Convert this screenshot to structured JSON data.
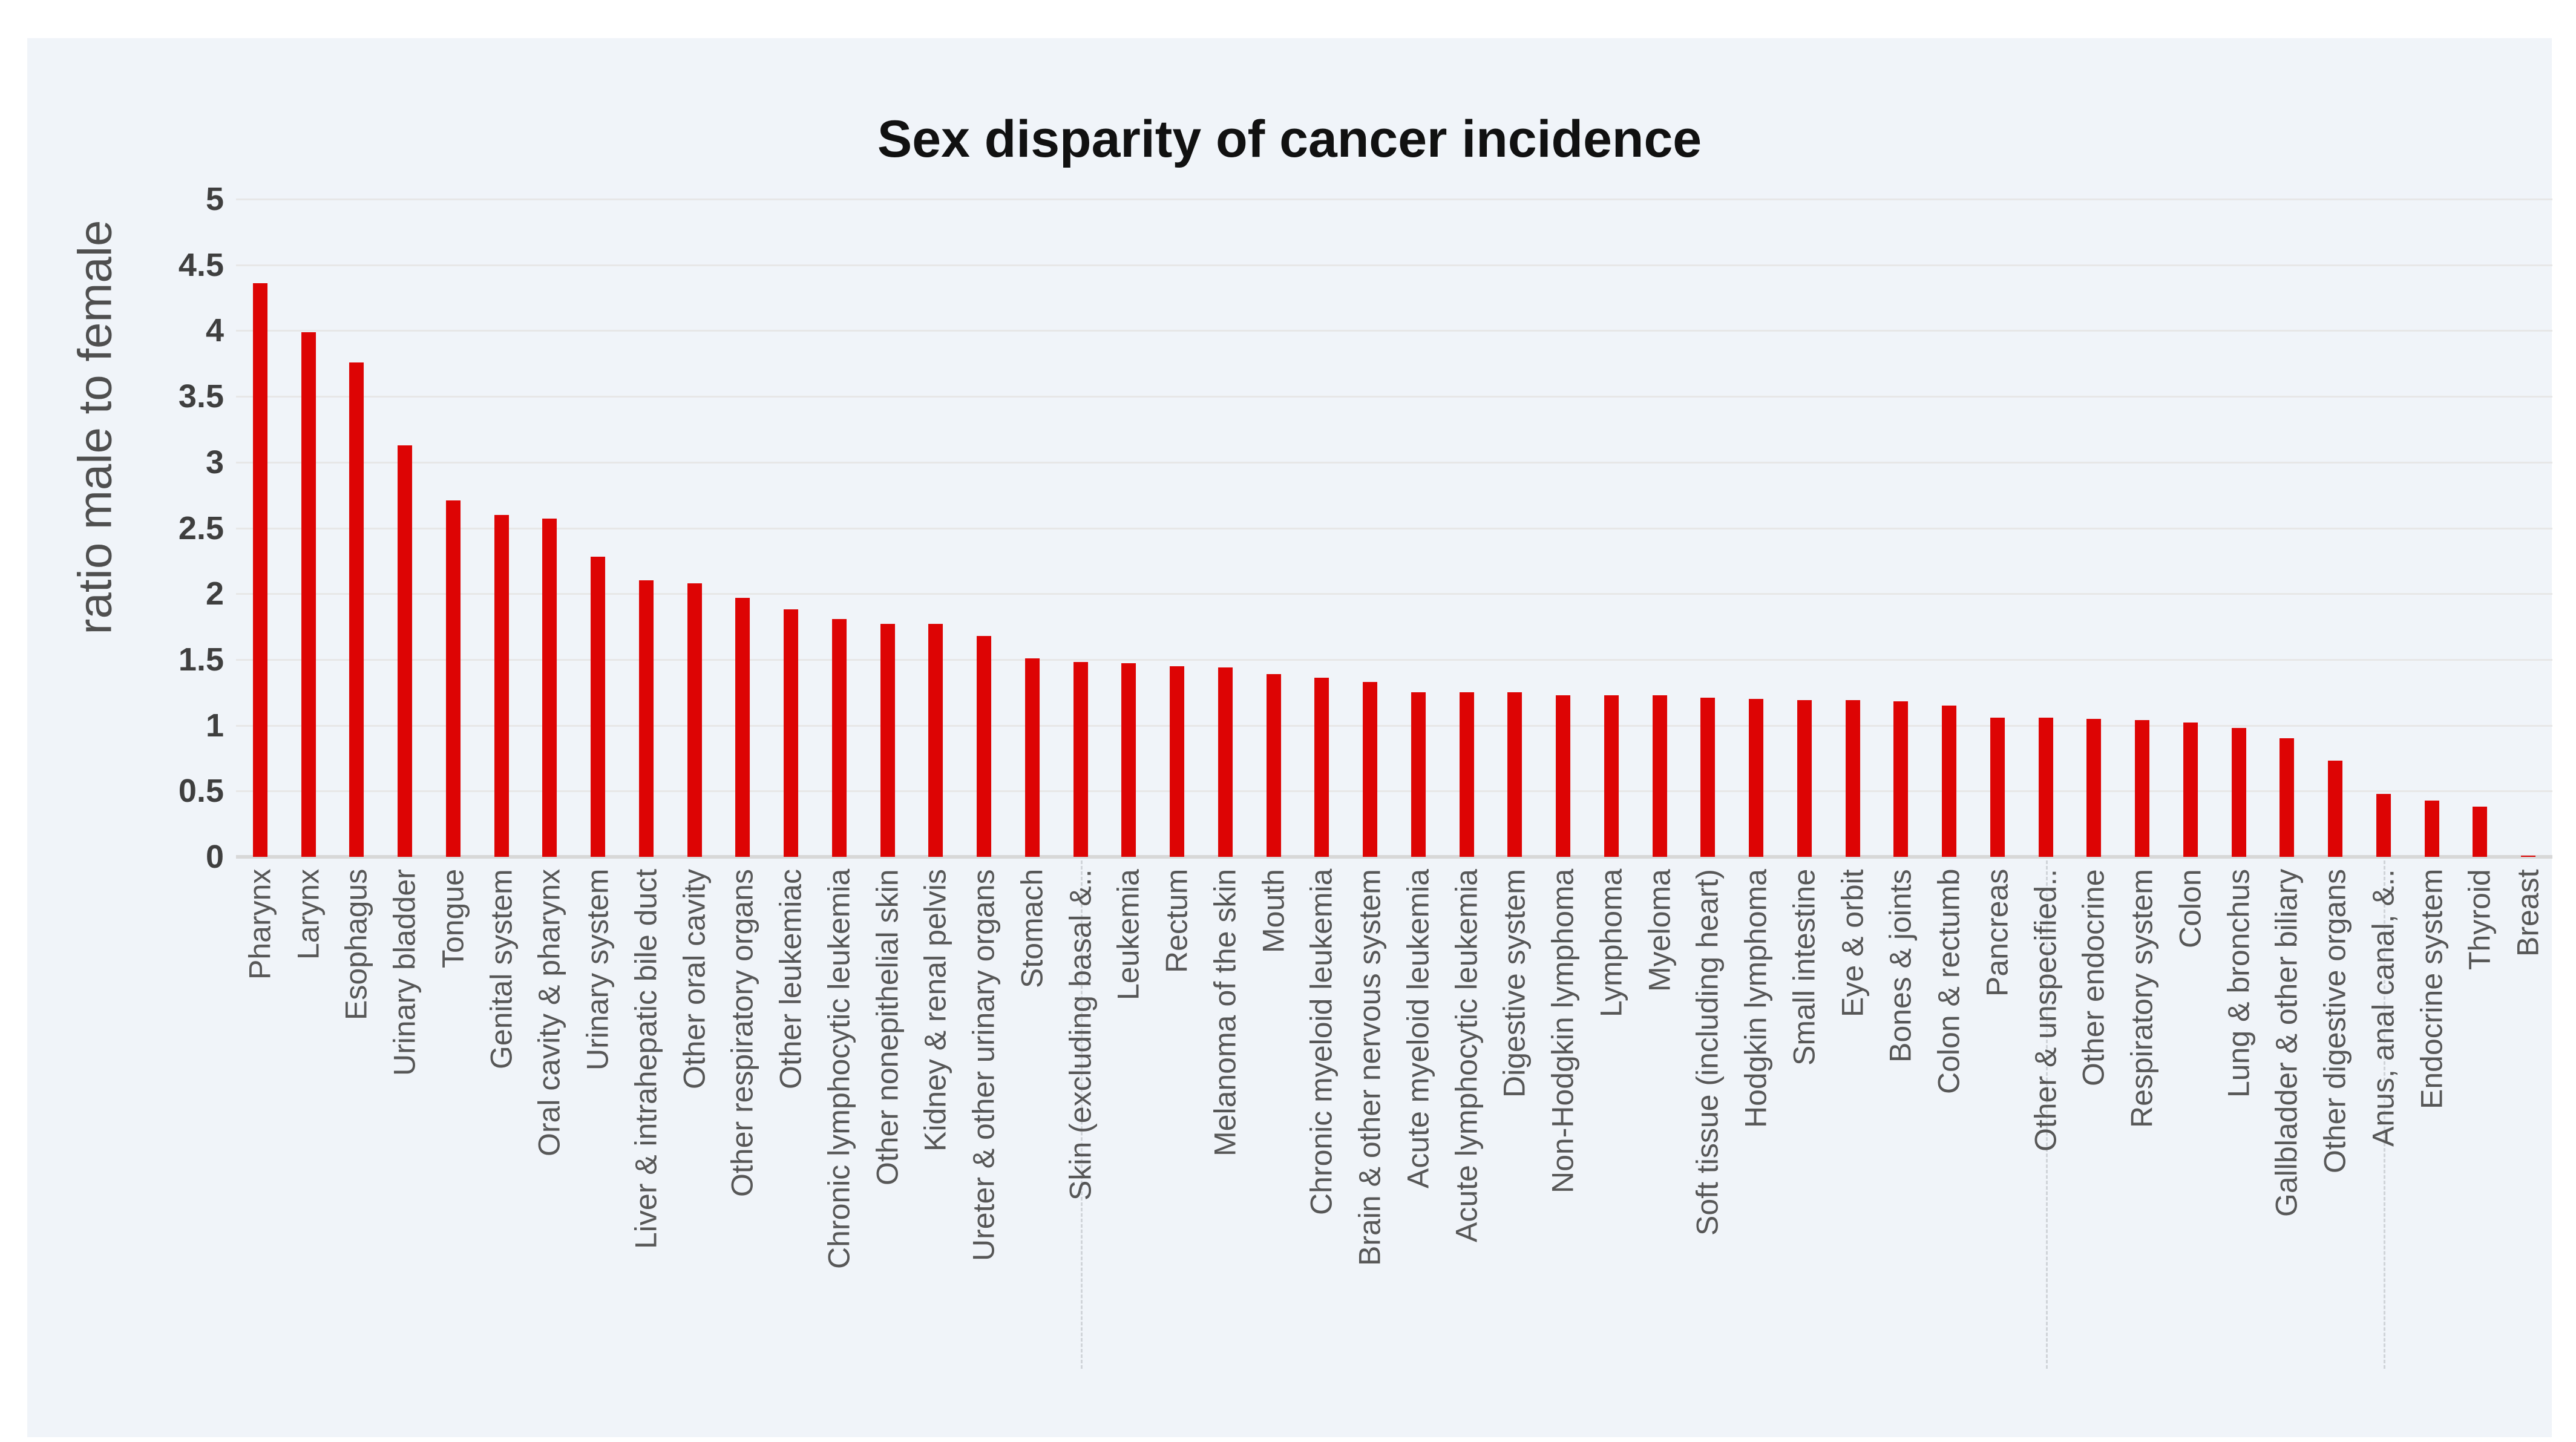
{
  "window": {
    "background": "#ffffff",
    "panel_background": "#f0f4f9"
  },
  "chart_data": {
    "type": "bar",
    "title": "Sex disparity of cancer incidence",
    "xlabel": "",
    "ylabel": "ratio male to female",
    "ylim": [
      0,
      5
    ],
    "ytick_step": 0.5,
    "ytick_labels": [
      "0",
      "0.5",
      "1",
      "1.5",
      "2",
      "2.5",
      "3",
      "3.5",
      "4",
      "4.5",
      "5"
    ],
    "grid": true,
    "legend_position": "none",
    "bar_color": "#dd0404",
    "categories": [
      "Pharynx",
      "Larynx",
      "Esophagus",
      "Urinary bladder",
      "Tongue",
      "Genital system",
      "Oral cavity & pharynx",
      "Urinary system",
      "Liver & intrahepatic bile duct",
      "Other oral cavity",
      "Other respiratory organs",
      "Other leukemiac",
      "Chronic lymphocytic leukemia",
      "Other nonepithelial skin",
      "Kidney & renal pelvis",
      "Ureter & other urinary organs",
      "Stomach",
      "Skin (excluding basal &..",
      "Leukemia",
      "Rectum",
      "Melanoma of the skin",
      "Mouth",
      "Chronic myeloid leukemia",
      "Brain & other nervous system",
      "Acute myeloid leukemia",
      "Acute lymphocytic leukemia",
      "Digestive system",
      "Non-Hodgkin lymphoma",
      "Lymphoma",
      "Myeloma",
      "Soft tissue (including heart)",
      "Hodgkin lymphoma",
      "Small intestine",
      "Eye & orbit",
      "Bones & joints",
      "Colon & rectumb",
      "Pancreas",
      "Other & unspecified..",
      "Other endocrine",
      "Respiratory system",
      "Colon",
      "Lung & bronchus",
      "Gallbladder & other biliary",
      "Other digestive organs",
      "Anus, anal canal, &..",
      "Endocrine system",
      "Thyroid",
      "Breast"
    ],
    "values": [
      4.36,
      3.99,
      3.76,
      3.13,
      2.71,
      2.6,
      2.57,
      2.28,
      2.1,
      2.08,
      1.97,
      1.88,
      1.81,
      1.77,
      1.77,
      1.68,
      1.51,
      1.48,
      1.47,
      1.45,
      1.44,
      1.39,
      1.36,
      1.33,
      1.25,
      1.25,
      1.25,
      1.23,
      1.23,
      1.23,
      1.21,
      1.2,
      1.19,
      1.19,
      1.18,
      1.15,
      1.06,
      1.06,
      1.05,
      1.04,
      1.02,
      0.98,
      0.9,
      0.73,
      0.48,
      0.43,
      0.38,
      0.01
    ],
    "truncated_label_indices": [
      17,
      37,
      44
    ]
  },
  "colors": {
    "grid": "#e7e7e7",
    "zero_line": "#d8d8d8",
    "title_text": "#111111",
    "tick_text": "#3f3f3f",
    "label_text": "#575757",
    "axis_title_text": "#4f4f4f"
  }
}
